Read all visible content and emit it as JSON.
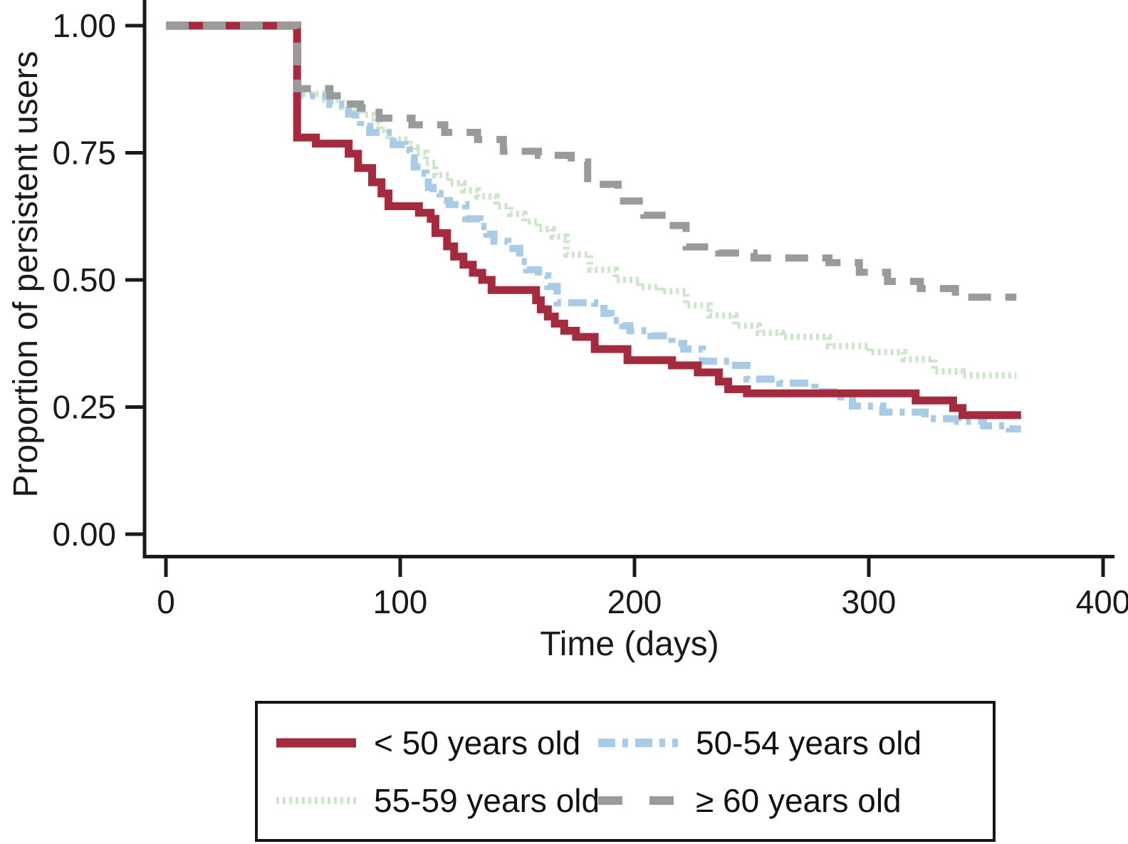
{
  "figure": {
    "background": "#ffffff",
    "axis_color": "#1a1a1a",
    "text_color": "#1a1a1a"
  },
  "chart_data": {
    "type": "line",
    "variant": "kaplan-meier-step",
    "title": "",
    "xlabel": "Time (days)",
    "ylabel": "Proportion of persistent users",
    "xlim": [
      0,
      400
    ],
    "ylim": [
      0,
      1
    ],
    "grid": false,
    "legend_position": "bottom-boxed",
    "x_ticks": [
      {
        "value": 0,
        "label": "0"
      },
      {
        "value": 100,
        "label": "100"
      },
      {
        "value": 200,
        "label": "200"
      },
      {
        "value": 300,
        "label": "300"
      },
      {
        "value": 400,
        "label": "400"
      }
    ],
    "y_ticks": [
      {
        "value": 1.0,
        "label": "1.00"
      },
      {
        "value": 0.75,
        "label": "0.75"
      },
      {
        "value": 0.5,
        "label": "0.50"
      },
      {
        "value": 0.25,
        "label": "0.25"
      },
      {
        "value": 0.0,
        "label": "0.00"
      }
    ],
    "series": [
      {
        "id": "under-50",
        "name": "< 50 years old",
        "color": "#a42a3d",
        "dash": "solid",
        "width": 11,
        "points": [
          [
            0,
            1
          ],
          [
            56,
            1
          ],
          [
            56,
            0.78
          ],
          [
            64,
            0.78
          ],
          [
            64,
            0.768
          ],
          [
            78,
            0.768
          ],
          [
            78,
            0.748
          ],
          [
            82,
            0.748
          ],
          [
            82,
            0.72
          ],
          [
            88,
            0.72
          ],
          [
            88,
            0.692
          ],
          [
            92,
            0.692
          ],
          [
            92,
            0.67
          ],
          [
            95,
            0.67
          ],
          [
            95,
            0.645
          ],
          [
            108,
            0.645
          ],
          [
            108,
            0.632
          ],
          [
            113,
            0.632
          ],
          [
            113,
            0.62
          ],
          [
            115,
            0.62
          ],
          [
            115,
            0.592
          ],
          [
            120,
            0.592
          ],
          [
            120,
            0.566
          ],
          [
            123,
            0.566
          ],
          [
            123,
            0.546
          ],
          [
            127,
            0.546
          ],
          [
            127,
            0.53
          ],
          [
            131,
            0.53
          ],
          [
            131,
            0.514
          ],
          [
            135,
            0.514
          ],
          [
            135,
            0.5
          ],
          [
            139,
            0.5
          ],
          [
            139,
            0.48
          ],
          [
            158,
            0.48
          ],
          [
            158,
            0.46
          ],
          [
            160,
            0.46
          ],
          [
            160,
            0.442
          ],
          [
            163,
            0.442
          ],
          [
            163,
            0.428
          ],
          [
            166,
            0.428
          ],
          [
            166,
            0.414
          ],
          [
            170,
            0.414
          ],
          [
            170,
            0.4
          ],
          [
            175,
            0.4
          ],
          [
            175,
            0.388
          ],
          [
            183,
            0.388
          ],
          [
            183,
            0.364
          ],
          [
            197,
            0.364
          ],
          [
            197,
            0.342
          ],
          [
            216,
            0.342
          ],
          [
            216,
            0.332
          ],
          [
            227,
            0.332
          ],
          [
            227,
            0.318
          ],
          [
            236,
            0.318
          ],
          [
            236,
            0.3
          ],
          [
            240,
            0.3
          ],
          [
            240,
            0.285
          ],
          [
            248,
            0.285
          ],
          [
            248,
            0.277
          ],
          [
            320,
            0.277
          ],
          [
            320,
            0.263
          ],
          [
            336,
            0.263
          ],
          [
            336,
            0.248
          ],
          [
            340,
            0.248
          ],
          [
            340,
            0.234
          ],
          [
            365,
            0.234
          ]
        ]
      },
      {
        "id": "50-54",
        "name": "50-54 years old",
        "color": "#a8cbe8",
        "dash": "dashdot",
        "width": 10,
        "points": [
          [
            0,
            1
          ],
          [
            56,
            1
          ],
          [
            56,
            0.862
          ],
          [
            70,
            0.862
          ],
          [
            70,
            0.845
          ],
          [
            78,
            0.845
          ],
          [
            78,
            0.826
          ],
          [
            81,
            0.826
          ],
          [
            81,
            0.815
          ],
          [
            83,
            0.815
          ],
          [
            83,
            0.802
          ],
          [
            87,
            0.802
          ],
          [
            87,
            0.79
          ],
          [
            97,
            0.79
          ],
          [
            97,
            0.766
          ],
          [
            102,
            0.766
          ],
          [
            102,
            0.755
          ],
          [
            104,
            0.755
          ],
          [
            104,
            0.74
          ],
          [
            106,
            0.74
          ],
          [
            106,
            0.722
          ],
          [
            109,
            0.722
          ],
          [
            109,
            0.71
          ],
          [
            111,
            0.71
          ],
          [
            111,
            0.7
          ],
          [
            112,
            0.7
          ],
          [
            112,
            0.682
          ],
          [
            114,
            0.682
          ],
          [
            114,
            0.67
          ],
          [
            117,
            0.67
          ],
          [
            117,
            0.656
          ],
          [
            121,
            0.656
          ],
          [
            121,
            0.648
          ],
          [
            128,
            0.648
          ],
          [
            128,
            0.62
          ],
          [
            134,
            0.62
          ],
          [
            134,
            0.605
          ],
          [
            137,
            0.605
          ],
          [
            137,
            0.59
          ],
          [
            140,
            0.59
          ],
          [
            140,
            0.576
          ],
          [
            146,
            0.576
          ],
          [
            146,
            0.562
          ],
          [
            151,
            0.562
          ],
          [
            151,
            0.536
          ],
          [
            154,
            0.536
          ],
          [
            154,
            0.52
          ],
          [
            159,
            0.52
          ],
          [
            159,
            0.508
          ],
          [
            163,
            0.508
          ],
          [
            163,
            0.487
          ],
          [
            167,
            0.487
          ],
          [
            167,
            0.455
          ],
          [
            183,
            0.455
          ],
          [
            183,
            0.444
          ],
          [
            187,
            0.444
          ],
          [
            187,
            0.434
          ],
          [
            190,
            0.434
          ],
          [
            190,
            0.42
          ],
          [
            195,
            0.42
          ],
          [
            195,
            0.41
          ],
          [
            198,
            0.41
          ],
          [
            198,
            0.4
          ],
          [
            207,
            0.4
          ],
          [
            207,
            0.39
          ],
          [
            216,
            0.39
          ],
          [
            216,
            0.375
          ],
          [
            221,
            0.375
          ],
          [
            221,
            0.364
          ],
          [
            229,
            0.364
          ],
          [
            229,
            0.34
          ],
          [
            241,
            0.34
          ],
          [
            241,
            0.332
          ],
          [
            248,
            0.332
          ],
          [
            248,
            0.305
          ],
          [
            262,
            0.305
          ],
          [
            262,
            0.297
          ],
          [
            277,
            0.297
          ],
          [
            277,
            0.28
          ],
          [
            288,
            0.28
          ],
          [
            288,
            0.27
          ],
          [
            293,
            0.27
          ],
          [
            293,
            0.252
          ],
          [
            306,
            0.252
          ],
          [
            306,
            0.24
          ],
          [
            324,
            0.24
          ],
          [
            324,
            0.227
          ],
          [
            338,
            0.227
          ],
          [
            338,
            0.222
          ],
          [
            349,
            0.222
          ],
          [
            349,
            0.213
          ],
          [
            360,
            0.213
          ],
          [
            360,
            0.207
          ],
          [
            365,
            0.207
          ]
        ]
      },
      {
        "id": "55-59",
        "name": "55-59 years old",
        "color": "#cde5ca",
        "dash": "dot",
        "width": 9,
        "points": [
          [
            0,
            1
          ],
          [
            56,
            1
          ],
          [
            56,
            0.866
          ],
          [
            68,
            0.866
          ],
          [
            68,
            0.854
          ],
          [
            75,
            0.854
          ],
          [
            75,
            0.84
          ],
          [
            84,
            0.84
          ],
          [
            84,
            0.825
          ],
          [
            89,
            0.825
          ],
          [
            89,
            0.81
          ],
          [
            91,
            0.81
          ],
          [
            91,
            0.795
          ],
          [
            95,
            0.795
          ],
          [
            95,
            0.776
          ],
          [
            104,
            0.776
          ],
          [
            104,
            0.76
          ],
          [
            107,
            0.76
          ],
          [
            107,
            0.75
          ],
          [
            111,
            0.75
          ],
          [
            111,
            0.73
          ],
          [
            115,
            0.73
          ],
          [
            115,
            0.706
          ],
          [
            121,
            0.706
          ],
          [
            121,
            0.69
          ],
          [
            127,
            0.69
          ],
          [
            127,
            0.676
          ],
          [
            133,
            0.676
          ],
          [
            133,
            0.664
          ],
          [
            141,
            0.664
          ],
          [
            141,
            0.645
          ],
          [
            147,
            0.645
          ],
          [
            147,
            0.63
          ],
          [
            153,
            0.63
          ],
          [
            153,
            0.615
          ],
          [
            159,
            0.615
          ],
          [
            159,
            0.6
          ],
          [
            165,
            0.6
          ],
          [
            165,
            0.585
          ],
          [
            171,
            0.585
          ],
          [
            171,
            0.55
          ],
          [
            181,
            0.55
          ],
          [
            181,
            0.52
          ],
          [
            192,
            0.52
          ],
          [
            192,
            0.5
          ],
          [
            202,
            0.5
          ],
          [
            202,
            0.486
          ],
          [
            211,
            0.486
          ],
          [
            211,
            0.478
          ],
          [
            222,
            0.478
          ],
          [
            222,
            0.45
          ],
          [
            232,
            0.45
          ],
          [
            232,
            0.43
          ],
          [
            243,
            0.43
          ],
          [
            243,
            0.41
          ],
          [
            253,
            0.41
          ],
          [
            253,
            0.396
          ],
          [
            263,
            0.396
          ],
          [
            263,
            0.388
          ],
          [
            283,
            0.388
          ],
          [
            283,
            0.37
          ],
          [
            300,
            0.37
          ],
          [
            300,
            0.358
          ],
          [
            315,
            0.358
          ],
          [
            315,
            0.344
          ],
          [
            328,
            0.344
          ],
          [
            328,
            0.32
          ],
          [
            340,
            0.32
          ],
          [
            340,
            0.312
          ],
          [
            363,
            0.312
          ]
        ]
      },
      {
        "id": "60-plus",
        "name": "≥ 60 years old",
        "color": "#9a9a9a",
        "dash": "longdash",
        "width": 10,
        "points": [
          [
            0,
            1
          ],
          [
            56,
            1
          ],
          [
            56,
            0.876
          ],
          [
            70,
            0.876
          ],
          [
            70,
            0.862
          ],
          [
            76,
            0.862
          ],
          [
            76,
            0.846
          ],
          [
            83,
            0.846
          ],
          [
            83,
            0.838
          ],
          [
            91,
            0.838
          ],
          [
            91,
            0.818
          ],
          [
            105,
            0.818
          ],
          [
            105,
            0.805
          ],
          [
            119,
            0.805
          ],
          [
            119,
            0.79
          ],
          [
            133,
            0.79
          ],
          [
            133,
            0.776
          ],
          [
            144,
            0.776
          ],
          [
            144,
            0.753
          ],
          [
            159,
            0.753
          ],
          [
            159,
            0.745
          ],
          [
            173,
            0.745
          ],
          [
            173,
            0.732
          ],
          [
            180,
            0.732
          ],
          [
            180,
            0.688
          ],
          [
            193,
            0.688
          ],
          [
            193,
            0.655
          ],
          [
            204,
            0.655
          ],
          [
            204,
            0.627
          ],
          [
            214,
            0.627
          ],
          [
            214,
            0.607
          ],
          [
            222,
            0.607
          ],
          [
            222,
            0.565
          ],
          [
            236,
            0.565
          ],
          [
            236,
            0.553
          ],
          [
            251,
            0.553
          ],
          [
            251,
            0.543
          ],
          [
            283,
            0.543
          ],
          [
            283,
            0.534
          ],
          [
            296,
            0.534
          ],
          [
            296,
            0.515
          ],
          [
            308,
            0.515
          ],
          [
            308,
            0.497
          ],
          [
            322,
            0.497
          ],
          [
            322,
            0.483
          ],
          [
            337,
            0.483
          ],
          [
            337,
            0.466
          ],
          [
            363,
            0.466
          ]
        ]
      }
    ]
  },
  "legend": {
    "items": [
      {
        "series_index": 0,
        "label": "< 50 years old"
      },
      {
        "series_index": 1,
        "label": "50-54 years old"
      },
      {
        "series_index": 2,
        "label": "55-59 years old"
      },
      {
        "series_index": 3,
        "label": "≥ 60 years old"
      }
    ]
  }
}
